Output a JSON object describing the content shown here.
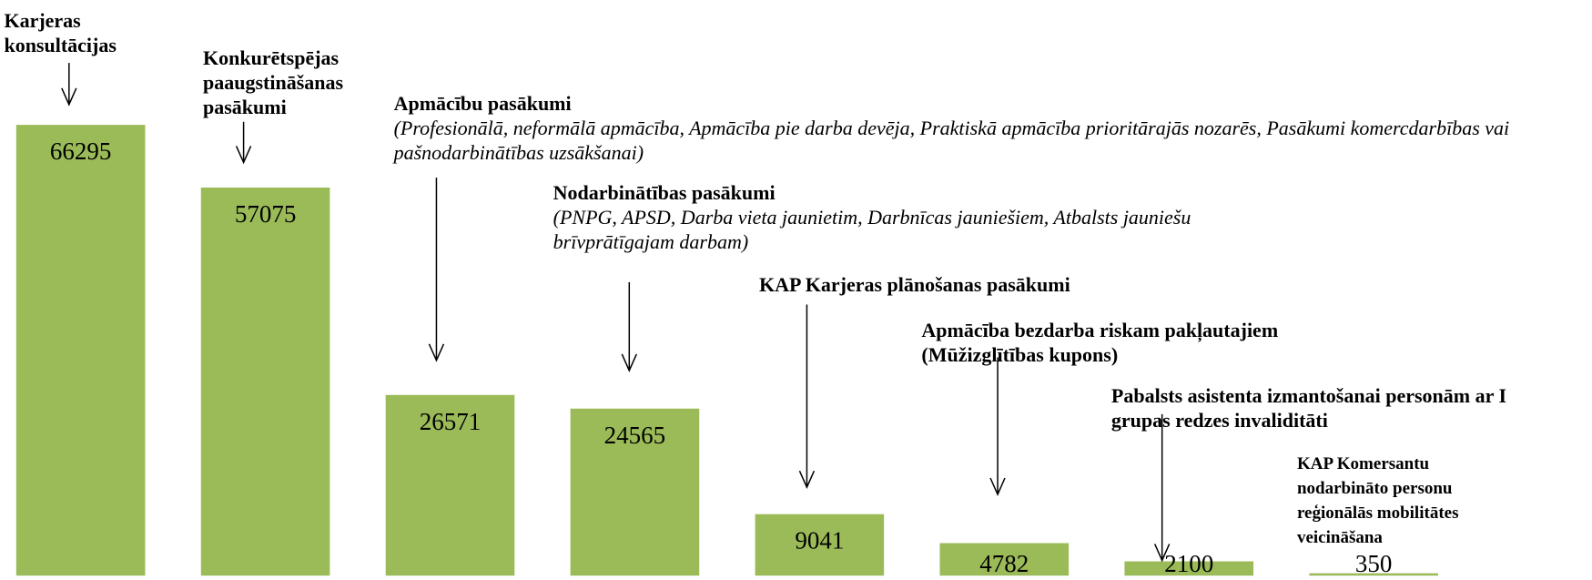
{
  "chart_data": {
    "type": "bar",
    "categories": [
      "Karjeras konsultācijas",
      "Konkurētspējas paaugstināšanas pasākumi",
      "Apmācību pasākumi",
      "Nodarbinātības pasākumi",
      "KAP Karjeras plānošanas pasākumi",
      "Apmācība bezdarba riskam pakļautajiem (Mūžizglītības kupons)",
      "Pabalsts asistenta izmantošanai personām ar I grupas redzes invaliditāti",
      "KAP  Komersantu nodarbināto personu reģionālās mobilitātes veicināšana"
    ],
    "category_details": [
      null,
      null,
      "(Profesionālā, neformālā apmācība, Apmācība pie darba devēja, Praktiskā apmācība prioritārajās nozarēs,  Pasākumi komercdarbības vai pašnodarbinātības uzsākšanai)",
      "(PNPG, APSD, Darba vieta jaunietim,  Darbnīcas jauniešiem,  Atbalsts jauniešu brīvprātīgajam darbam)",
      null,
      null,
      null,
      null
    ],
    "values": [
      66295,
      57075,
      26571,
      24565,
      9041,
      4782,
      2100,
      350
    ],
    "color": "#9bbb59"
  }
}
